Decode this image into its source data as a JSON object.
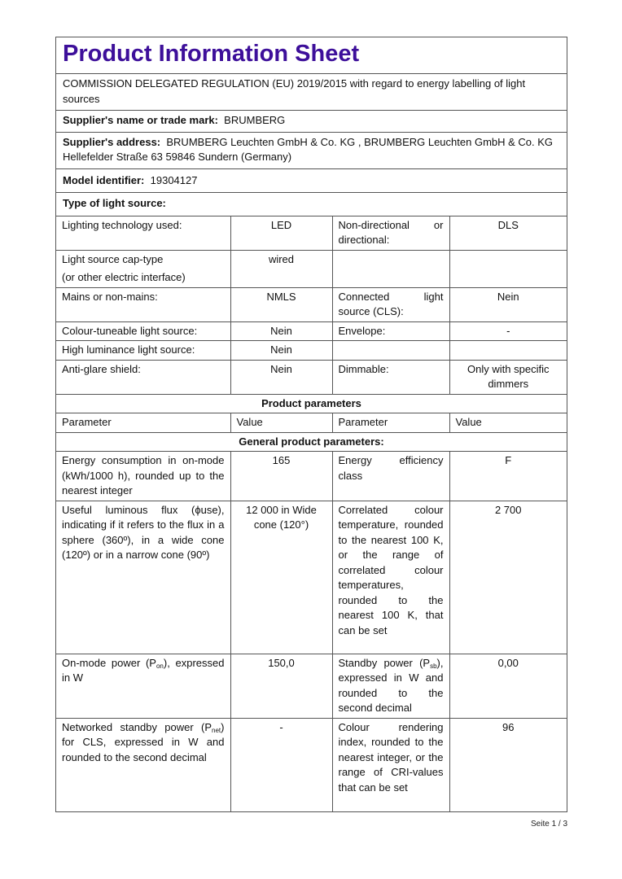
{
  "title": "Product Information Sheet",
  "regulation": "COMMISSION DELEGATED REGULATION (EU) 2019/2015 with regard to energy labelling of light sources",
  "supplier_name": {
    "label": "Supplier's name or trade mark:",
    "value": "BRUMBERG"
  },
  "supplier_address": {
    "label": "Supplier's address:",
    "value": "BRUMBERG Leuchten GmbH & Co. KG , BRUMBERG Leuchten GmbH & Co. KG Hellefelder Straße 63 59846 Sundern (Germany)"
  },
  "model": {
    "label": "Model identifier:",
    "value": "19304127"
  },
  "type_heading": "Type of light source:",
  "type_rows": [
    {
      "p1": "Lighting technology used:",
      "v1": "LED",
      "p2": "Non-directional or directional:",
      "v2": "DLS"
    },
    {
      "p1": "Light source cap-type",
      "p1b": "(or other electric interface)",
      "v1": "wired",
      "p2": "",
      "v2": ""
    },
    {
      "p1": "Mains or non-mains:",
      "v1": "NMLS",
      "p2": "Connected light source (CLS):",
      "v2": "Nein"
    },
    {
      "p1": "Colour-tuneable light source:",
      "v1": "Nein",
      "p2": "Envelope:",
      "v2": "-"
    },
    {
      "p1": "High luminance light source:",
      "v1": "Nein",
      "p2": "",
      "v2": ""
    },
    {
      "p1": "Anti-glare shield:",
      "v1": "Nein",
      "p2": "Dimmable:",
      "v2": "Only with specific dimmers"
    }
  ],
  "product_parameters": "Product parameters",
  "headers": [
    "Parameter",
    "Value",
    "Parameter",
    "Value"
  ],
  "general_heading": "General product parameters:",
  "params": {
    "energy": {
      "p1": "Energy consumption in on-mode (kWh/1000 h), rounded up to the nearest integer",
      "v1": "165",
      "p2": "Energy efficiency class",
      "v2": "F"
    },
    "flux": {
      "p1": "Useful luminous flux (ϕuse), indicating if it refers to the flux in a sphere (360º), in a wide cone (120º) or in a narrow cone (90º)",
      "v1": "12 000 in Wide cone (120°)",
      "p2": "Correlated colour temperature, rounded to the nearest 100 K, or the range of correlated colour temperatures, rounded to the nearest 100 K, that can be set",
      "v2": "2 700"
    },
    "power": {
      "p1_a": "On-mode power (P",
      "p1_sub": "on",
      "p1_b": "), expressed in W",
      "v1": "150,0",
      "p2_a": "Standby power (P",
      "p2_sub": "sb",
      "p2_b": "), expressed in W and rounded to the second decimal",
      "v2": "0,00"
    },
    "network": {
      "p1_a": "Networked standby power (P",
      "p1_sub": "net",
      "p1_b": ") for CLS, expressed in W and rounded to the second decimal",
      "v1": "-",
      "p2": "Colour rendering index, rounded to the nearest integer, or the range of CRI-values that can be set",
      "v2": "96"
    }
  },
  "footer": {
    "label": "Seite",
    "page": "1 / 3"
  },
  "colors": {
    "title": "#3d0f9a",
    "border": "#555555"
  }
}
